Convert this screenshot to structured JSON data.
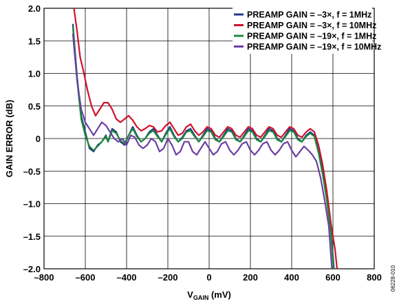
{
  "chart_data": {
    "type": "line",
    "xlabel_main": "V",
    "xlabel_sub": "GAIN",
    "xlabel_unit": " (mV)",
    "ylabel": "GAIN ERROR (dB)",
    "xlim": [
      -800,
      800
    ],
    "ylim": [
      -2.0,
      2.0
    ],
    "x_ticks": [
      -800,
      -600,
      -400,
      -200,
      0,
      200,
      400,
      600,
      800
    ],
    "x_tick_labels": [
      "–800",
      "–600",
      "–400",
      "–200",
      "0",
      "200",
      "400",
      "600",
      "800"
    ],
    "y_ticks": [
      2.0,
      1.5,
      1.0,
      0.5,
      0,
      -0.5,
      -1.0,
      -1.5,
      -2.0
    ],
    "y_tick_labels": [
      "2.0",
      "1.5",
      "1.0",
      "0.5",
      "0",
      "–0.5",
      "–1.0",
      "–1.5",
      "–2.0"
    ],
    "grid": true,
    "legend_position": "top-right",
    "figure_id": "06228-010",
    "series": [
      {
        "name": "PREAMP GAIN = –3×, f = 1MHz",
        "color": "#1f3a8a",
        "points": [
          [
            -660,
            1.75
          ],
          [
            -640,
            0.95
          ],
          [
            -620,
            0.35
          ],
          [
            -600,
            0.1
          ],
          [
            -580,
            -0.15
          ],
          [
            -560,
            -0.2
          ],
          [
            -540,
            -0.1
          ],
          [
            -520,
            -0.05
          ],
          [
            -500,
            0.05
          ],
          [
            -490,
            -0.05
          ],
          [
            -470,
            0.15
          ],
          [
            -450,
            0.1
          ],
          [
            -430,
            -0.05
          ],
          [
            -410,
            -0.1
          ],
          [
            -390,
            0.05
          ],
          [
            -370,
            0.18
          ],
          [
            -350,
            0.05
          ],
          [
            -330,
            -0.05
          ],
          [
            -310,
            0.0
          ],
          [
            -290,
            0.1
          ],
          [
            -270,
            0.15
          ],
          [
            -250,
            0.05
          ],
          [
            -230,
            -0.05
          ],
          [
            -210,
            0.08
          ],
          [
            -190,
            0.18
          ],
          [
            -170,
            0.05
          ],
          [
            -150,
            -0.05
          ],
          [
            -130,
            0.02
          ],
          [
            -110,
            0.12
          ],
          [
            -90,
            0.15
          ],
          [
            -70,
            0.05
          ],
          [
            -50,
            -0.05
          ],
          [
            -30,
            0.05
          ],
          [
            -10,
            0.15
          ],
          [
            10,
            0.12
          ],
          [
            30,
            0.0
          ],
          [
            50,
            -0.05
          ],
          [
            70,
            0.05
          ],
          [
            90,
            0.15
          ],
          [
            110,
            0.12
          ],
          [
            130,
            0.0
          ],
          [
            150,
            -0.05
          ],
          [
            170,
            0.05
          ],
          [
            190,
            0.15
          ],
          [
            210,
            0.12
          ],
          [
            230,
            0.0
          ],
          [
            250,
            -0.05
          ],
          [
            270,
            0.05
          ],
          [
            290,
            0.15
          ],
          [
            310,
            0.12
          ],
          [
            330,
            0.0
          ],
          [
            350,
            -0.05
          ],
          [
            370,
            0.05
          ],
          [
            390,
            0.15
          ],
          [
            410,
            0.12
          ],
          [
            430,
            0.0
          ],
          [
            450,
            -0.05
          ],
          [
            470,
            0.05
          ],
          [
            490,
            0.1
          ],
          [
            510,
            0.05
          ],
          [
            530,
            -0.2
          ],
          [
            550,
            -0.5
          ],
          [
            570,
            -0.9
          ],
          [
            590,
            -1.4
          ],
          [
            605,
            -2.0
          ]
        ]
      },
      {
        "name": "PREAMP GAIN = –3×, f = 10MHz",
        "color": "#d0112b",
        "points": [
          [
            -655,
            2.0
          ],
          [
            -640,
            1.65
          ],
          [
            -625,
            1.25
          ],
          [
            -610,
            1.05
          ],
          [
            -590,
            0.75
          ],
          [
            -570,
            0.5
          ],
          [
            -550,
            0.35
          ],
          [
            -530,
            0.45
          ],
          [
            -510,
            0.55
          ],
          [
            -490,
            0.55
          ],
          [
            -470,
            0.45
          ],
          [
            -450,
            0.3
          ],
          [
            -430,
            0.25
          ],
          [
            -410,
            0.3
          ],
          [
            -390,
            0.35
          ],
          [
            -370,
            0.28
          ],
          [
            -350,
            0.18
          ],
          [
            -330,
            0.12
          ],
          [
            -310,
            0.15
          ],
          [
            -290,
            0.2
          ],
          [
            -270,
            0.18
          ],
          [
            -250,
            0.1
          ],
          [
            -230,
            0.12
          ],
          [
            -210,
            0.2
          ],
          [
            -190,
            0.25
          ],
          [
            -170,
            0.15
          ],
          [
            -150,
            0.05
          ],
          [
            -130,
            0.08
          ],
          [
            -110,
            0.18
          ],
          [
            -90,
            0.22
          ],
          [
            -70,
            0.12
          ],
          [
            -50,
            0.05
          ],
          [
            -30,
            0.1
          ],
          [
            -10,
            0.18
          ],
          [
            10,
            0.15
          ],
          [
            30,
            0.05
          ],
          [
            50,
            0.02
          ],
          [
            70,
            0.1
          ],
          [
            90,
            0.18
          ],
          [
            110,
            0.15
          ],
          [
            130,
            0.05
          ],
          [
            150,
            0.02
          ],
          [
            170,
            0.1
          ],
          [
            190,
            0.18
          ],
          [
            210,
            0.15
          ],
          [
            230,
            0.05
          ],
          [
            250,
            0.02
          ],
          [
            270,
            0.1
          ],
          [
            290,
            0.18
          ],
          [
            310,
            0.15
          ],
          [
            330,
            0.05
          ],
          [
            350,
            0.02
          ],
          [
            370,
            0.1
          ],
          [
            390,
            0.18
          ],
          [
            410,
            0.15
          ],
          [
            430,
            0.05
          ],
          [
            450,
            0.02
          ],
          [
            470,
            0.1
          ],
          [
            490,
            0.15
          ],
          [
            510,
            0.1
          ],
          [
            530,
            -0.1
          ],
          [
            550,
            -0.4
          ],
          [
            570,
            -0.8
          ],
          [
            590,
            -1.3
          ],
          [
            610,
            -1.7
          ],
          [
            620,
            -2.0
          ]
        ]
      },
      {
        "name": "PREAMP GAIN = –19×, f = 1MHz",
        "color": "#1e8a3a",
        "points": [
          [
            -660,
            1.7
          ],
          [
            -640,
            0.9
          ],
          [
            -620,
            0.3
          ],
          [
            -600,
            0.05
          ],
          [
            -580,
            -0.12
          ],
          [
            -560,
            -0.18
          ],
          [
            -540,
            -0.12
          ],
          [
            -520,
            -0.05
          ],
          [
            -500,
            0.03
          ],
          [
            -490,
            -0.05
          ],
          [
            -470,
            0.12
          ],
          [
            -450,
            0.08
          ],
          [
            -430,
            -0.03
          ],
          [
            -410,
            -0.08
          ],
          [
            -390,
            0.05
          ],
          [
            -370,
            0.15
          ],
          [
            -350,
            0.03
          ],
          [
            -330,
            -0.05
          ],
          [
            -310,
            0.0
          ],
          [
            -290,
            0.08
          ],
          [
            -270,
            0.12
          ],
          [
            -250,
            0.03
          ],
          [
            -230,
            -0.05
          ],
          [
            -210,
            0.06
          ],
          [
            -190,
            0.15
          ],
          [
            -170,
            0.03
          ],
          [
            -150,
            -0.05
          ],
          [
            -130,
            0.0
          ],
          [
            -110,
            0.1
          ],
          [
            -90,
            0.12
          ],
          [
            -70,
            0.03
          ],
          [
            -50,
            -0.05
          ],
          [
            -30,
            0.03
          ],
          [
            -10,
            0.12
          ],
          [
            10,
            0.1
          ],
          [
            30,
            -0.02
          ],
          [
            50,
            -0.05
          ],
          [
            70,
            0.03
          ],
          [
            90,
            0.12
          ],
          [
            110,
            0.1
          ],
          [
            130,
            -0.02
          ],
          [
            150,
            -0.05
          ],
          [
            170,
            0.03
          ],
          [
            190,
            0.12
          ],
          [
            210,
            0.1
          ],
          [
            230,
            -0.02
          ],
          [
            250,
            -0.05
          ],
          [
            270,
            0.03
          ],
          [
            290,
            0.12
          ],
          [
            310,
            0.1
          ],
          [
            330,
            -0.02
          ],
          [
            350,
            -0.05
          ],
          [
            370,
            0.03
          ],
          [
            390,
            0.12
          ],
          [
            410,
            0.1
          ],
          [
            430,
            -0.02
          ],
          [
            450,
            -0.05
          ],
          [
            470,
            0.03
          ],
          [
            490,
            0.08
          ],
          [
            510,
            0.03
          ],
          [
            530,
            -0.22
          ],
          [
            550,
            -0.55
          ],
          [
            570,
            -0.95
          ],
          [
            590,
            -1.45
          ],
          [
            603,
            -2.0
          ]
        ]
      },
      {
        "name": "PREAMP GAIN = –19×, f = 10MHz",
        "color": "#6a3fa0",
        "points": [
          [
            -660,
            1.6
          ],
          [
            -640,
            0.9
          ],
          [
            -620,
            0.45
          ],
          [
            -600,
            0.25
          ],
          [
            -580,
            0.15
          ],
          [
            -560,
            0.05
          ],
          [
            -540,
            0.15
          ],
          [
            -520,
            0.25
          ],
          [
            -500,
            0.2
          ],
          [
            -480,
            0.1
          ],
          [
            -460,
            0.0
          ],
          [
            -440,
            -0.05
          ],
          [
            -420,
            0.0
          ],
          [
            -400,
            -0.1
          ],
          [
            -380,
            0.05
          ],
          [
            -360,
            0.02
          ],
          [
            -340,
            -0.1
          ],
          [
            -320,
            -0.15
          ],
          [
            -300,
            -0.1
          ],
          [
            -280,
            0.0
          ],
          [
            -260,
            -0.05
          ],
          [
            -240,
            -0.2
          ],
          [
            -220,
            -0.15
          ],
          [
            -200,
            0.0
          ],
          [
            -180,
            -0.1
          ],
          [
            -160,
            -0.25
          ],
          [
            -140,
            -0.2
          ],
          [
            -120,
            -0.05
          ],
          [
            -100,
            -0.05
          ],
          [
            -80,
            -0.2
          ],
          [
            -60,
            -0.25
          ],
          [
            -40,
            -0.15
          ],
          [
            -20,
            -0.05
          ],
          [
            0,
            -0.15
          ],
          [
            20,
            -0.25
          ],
          [
            40,
            -0.2
          ],
          [
            60,
            -0.08
          ],
          [
            80,
            -0.05
          ],
          [
            100,
            -0.18
          ],
          [
            120,
            -0.25
          ],
          [
            140,
            -0.18
          ],
          [
            160,
            -0.08
          ],
          [
            180,
            -0.05
          ],
          [
            200,
            -0.18
          ],
          [
            220,
            -0.25
          ],
          [
            240,
            -0.18
          ],
          [
            260,
            -0.08
          ],
          [
            280,
            -0.05
          ],
          [
            300,
            -0.18
          ],
          [
            320,
            -0.25
          ],
          [
            340,
            -0.18
          ],
          [
            360,
            -0.08
          ],
          [
            380,
            -0.05
          ],
          [
            400,
            -0.18
          ],
          [
            420,
            -0.28
          ],
          [
            440,
            -0.2
          ],
          [
            460,
            -0.12
          ],
          [
            480,
            -0.18
          ],
          [
            500,
            -0.25
          ],
          [
            520,
            -0.35
          ],
          [
            540,
            -0.6
          ],
          [
            560,
            -0.95
          ],
          [
            580,
            -1.35
          ],
          [
            595,
            -2.0
          ]
        ]
      }
    ]
  }
}
